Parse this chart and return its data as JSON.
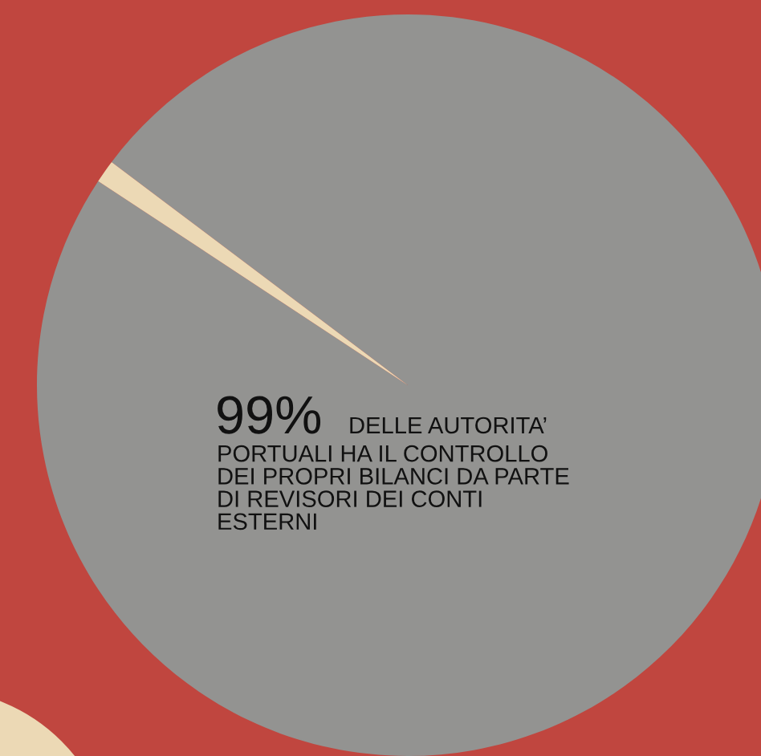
{
  "chart_data": {
    "type": "pie",
    "categories": [
      null,
      null
    ],
    "values": [
      99,
      1
    ],
    "colors": [
      "#939391",
      "#ecd9b5"
    ],
    "value_labels": [
      "99%",
      null
    ],
    "annotations": [
      "DELLE AUTORITA’\nPORTUALI HA IL CONTROLLO\nDEI PROPRI BILANCI DA PARTE\nDI REVISORI DEI CONTI\nESTERNI"
    ],
    "legend": false
  }
}
